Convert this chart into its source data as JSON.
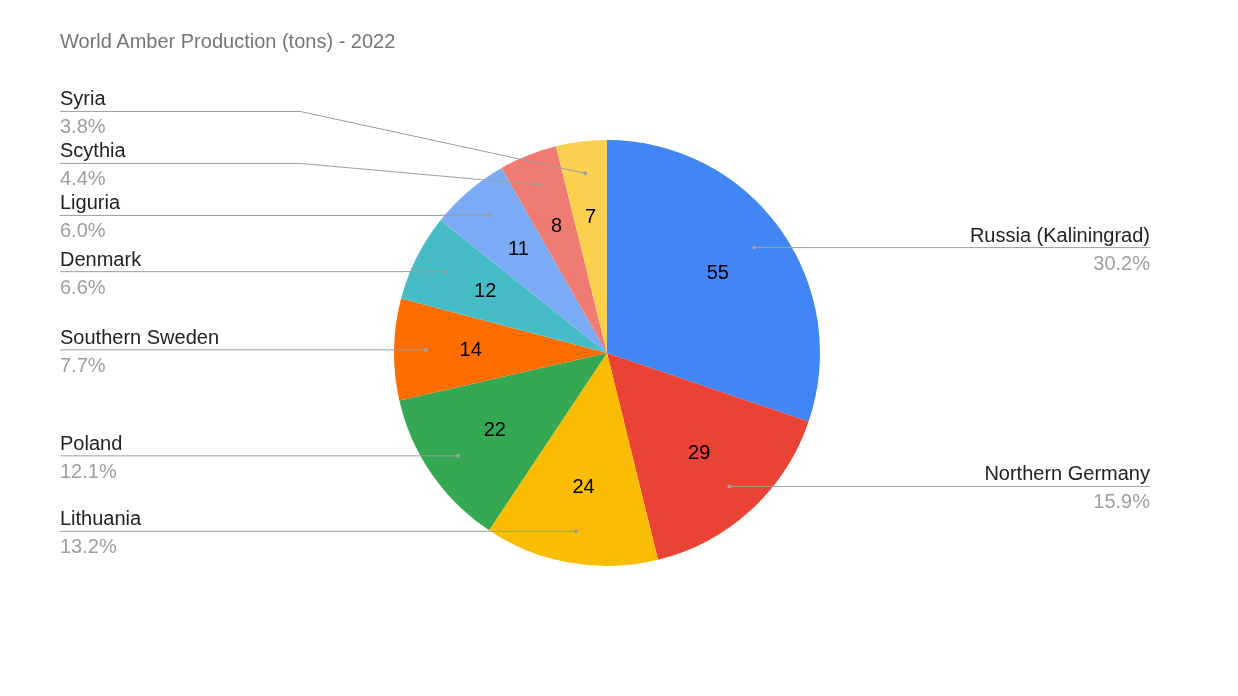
{
  "chart_data": {
    "type": "pie",
    "title": "World Amber Production (tons) - 2022",
    "categories": [
      "Russia (Kaliningrad)",
      "Northern Germany",
      "Lithuania",
      "Poland",
      "Southern Sweden",
      "Denmark",
      "Liguria",
      "Scythia",
      "Syria"
    ],
    "values": [
      55,
      29,
      24,
      22,
      14,
      12,
      11,
      8,
      7
    ],
    "colors": [
      "#4285f4",
      "#ea4335",
      "#fbbc04",
      "#34a853",
      "#ff6d01",
      "#46bdc6",
      "#7baaf7",
      "#f07b72",
      "#fcd04f"
    ],
    "data_labels": true,
    "annotations": [
      "30.2%",
      "15.9%",
      "13.2%",
      "12.1%",
      "7.7%",
      "6.6%",
      "6.0%",
      "4.4%",
      "3.8%"
    ],
    "legend": false
  }
}
